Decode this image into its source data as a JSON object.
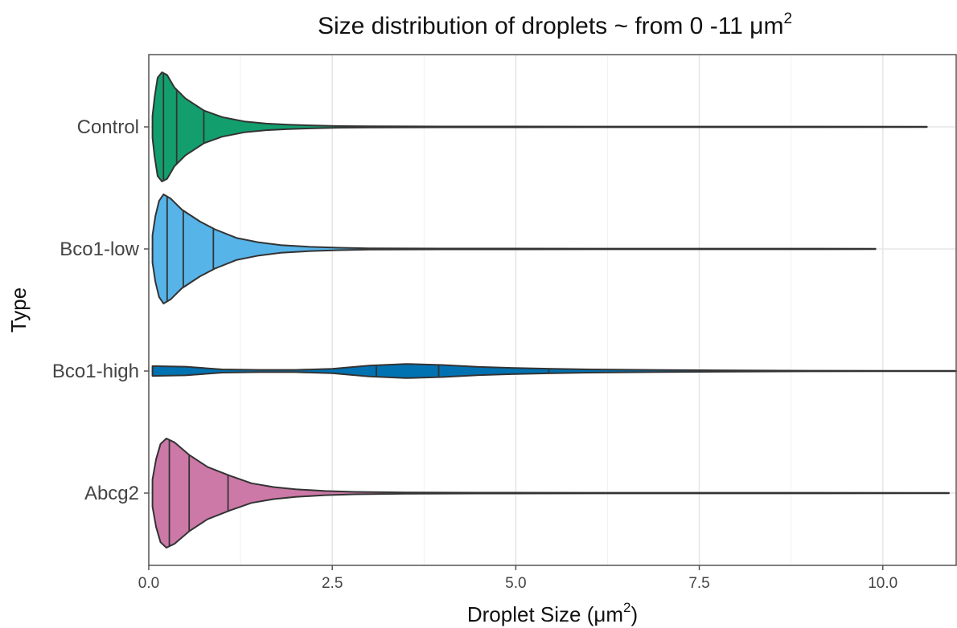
{
  "chart_data": {
    "type": "violin",
    "orientation": "horizontal",
    "title": "Size distribution of droplets ~ from 0 -11 μm",
    "title_superscript": "2",
    "xlabel": "Droplet Size (μm",
    "xlabel_superscript": "2",
    "xlabel_suffix": ")",
    "ylabel": "Type",
    "xlim": [
      0,
      11
    ],
    "x_ticks": [
      0,
      2.5,
      5,
      7.5,
      10
    ],
    "x_tick_labels": [
      "0.0",
      "2.5",
      "5.0",
      "7.5",
      "10.0"
    ],
    "x_minor_ticks": [
      1.25,
      3.75,
      6.25,
      8.75
    ],
    "grid": true,
    "categories": [
      "Control",
      "Bco1-low",
      "Bco1-high",
      "Abcg2"
    ],
    "series": [
      {
        "name": "Control",
        "color": "#139e6e",
        "min": 0.05,
        "max": 10.6,
        "quantiles": [
          0.2,
          0.38,
          0.75
        ],
        "density": [
          [
            0.05,
            0.2
          ],
          [
            0.08,
            0.55
          ],
          [
            0.12,
            0.9
          ],
          [
            0.18,
            1.0
          ],
          [
            0.25,
            0.95
          ],
          [
            0.35,
            0.72
          ],
          [
            0.5,
            0.52
          ],
          [
            0.75,
            0.3
          ],
          [
            1.0,
            0.18
          ],
          [
            1.3,
            0.1
          ],
          [
            1.6,
            0.06
          ],
          [
            1.9,
            0.04
          ],
          [
            2.2,
            0.028
          ],
          [
            2.6,
            0.015
          ],
          [
            3.0,
            0.01
          ],
          [
            4.0,
            0.007
          ],
          [
            6.0,
            0.006
          ],
          [
            10.6,
            0.004
          ]
        ]
      },
      {
        "name": "Bco1-low",
        "color": "#56b4e9",
        "min": 0.05,
        "max": 9.9,
        "quantiles": [
          0.25,
          0.47,
          0.88
        ],
        "density": [
          [
            0.05,
            0.25
          ],
          [
            0.09,
            0.6
          ],
          [
            0.14,
            0.88
          ],
          [
            0.2,
            1.0
          ],
          [
            0.3,
            0.92
          ],
          [
            0.45,
            0.72
          ],
          [
            0.7,
            0.5
          ],
          [
            0.9,
            0.36
          ],
          [
            1.2,
            0.2
          ],
          [
            1.5,
            0.12
          ],
          [
            1.8,
            0.07
          ],
          [
            2.2,
            0.038
          ],
          [
            2.6,
            0.022
          ],
          [
            3.0,
            0.012
          ],
          [
            4.0,
            0.008
          ],
          [
            6.0,
            0.006
          ],
          [
            9.9,
            0.004
          ]
        ]
      },
      {
        "name": "Bco1-high",
        "color": "#0072b2",
        "min": 0.05,
        "max": 11.0,
        "quantiles": [
          3.1,
          3.95,
          5.45
        ],
        "density": [
          [
            0.05,
            0.09
          ],
          [
            0.5,
            0.08
          ],
          [
            1.0,
            0.03
          ],
          [
            1.5,
            0.02
          ],
          [
            2.0,
            0.02
          ],
          [
            2.5,
            0.04
          ],
          [
            3.0,
            0.1
          ],
          [
            3.5,
            0.13
          ],
          [
            4.0,
            0.11
          ],
          [
            4.5,
            0.075
          ],
          [
            5.0,
            0.055
          ],
          [
            5.5,
            0.04
          ],
          [
            6.0,
            0.03
          ],
          [
            7.0,
            0.018
          ],
          [
            8.0,
            0.01
          ],
          [
            9.0,
            0.006
          ],
          [
            10.0,
            0.004
          ],
          [
            11.0,
            0.003
          ]
        ]
      },
      {
        "name": "Abcg2",
        "color": "#cc79a7",
        "min": 0.05,
        "max": 10.9,
        "quantiles": [
          0.28,
          0.55,
          1.08
        ],
        "density": [
          [
            0.05,
            0.25
          ],
          [
            0.1,
            0.62
          ],
          [
            0.16,
            0.9
          ],
          [
            0.24,
            1.0
          ],
          [
            0.35,
            0.93
          ],
          [
            0.55,
            0.7
          ],
          [
            0.8,
            0.48
          ],
          [
            1.1,
            0.32
          ],
          [
            1.4,
            0.18
          ],
          [
            1.7,
            0.11
          ],
          [
            2.0,
            0.07
          ],
          [
            2.4,
            0.038
          ],
          [
            2.8,
            0.022
          ],
          [
            3.5,
            0.012
          ],
          [
            4.5,
            0.008
          ],
          [
            6.0,
            0.006
          ],
          [
            10.9,
            0.004
          ]
        ]
      }
    ]
  }
}
